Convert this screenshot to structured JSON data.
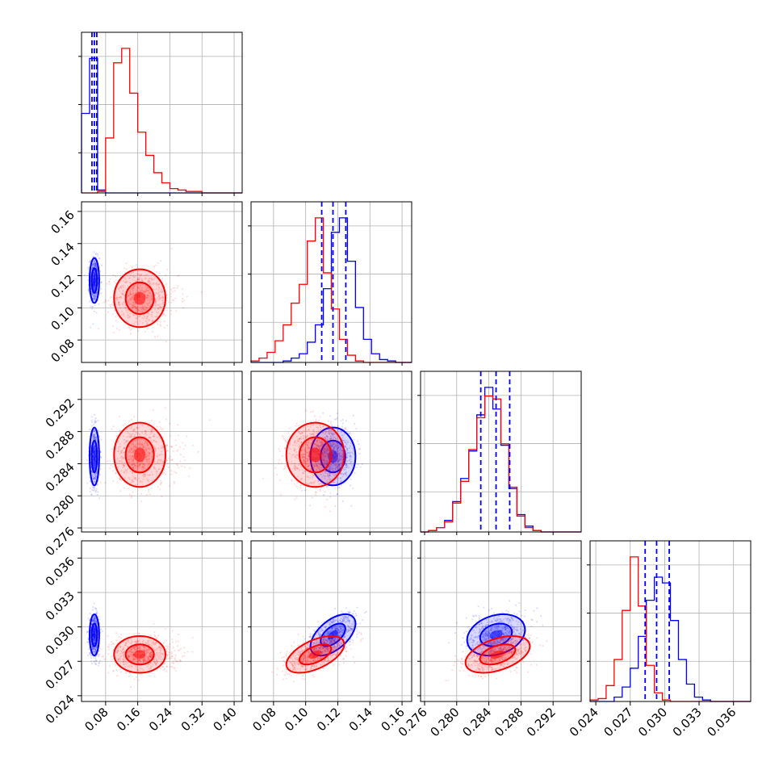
{
  "chart_data": {
    "type": "corner",
    "parameters": [
      {
        "key": "p1",
        "range": [
          0.02,
          0.42
        ],
        "ticks": [
          0.08,
          0.16,
          0.24,
          0.32,
          0.4
        ],
        "tick_labels": [
          "0.08",
          "0.16",
          "0.24",
          "0.32",
          "0.40"
        ]
      },
      {
        "key": "p2",
        "range": [
          0.066,
          0.166
        ],
        "ticks": [
          0.08,
          0.1,
          0.12,
          0.14,
          0.16
        ],
        "tick_labels": [
          "0.08",
          "0.10",
          "0.12",
          "0.14",
          "0.16"
        ]
      },
      {
        "key": "p3",
        "range": [
          0.2755,
          0.2955
        ],
        "ticks": [
          0.276,
          0.28,
          0.284,
          0.288,
          0.292
        ],
        "tick_labels": [
          "0.276",
          "0.280",
          "0.284",
          "0.288",
          "0.292"
        ]
      },
      {
        "key": "p4",
        "range": [
          0.0235,
          0.0375
        ],
        "ticks": [
          0.024,
          0.027,
          0.03,
          0.033,
          0.036
        ],
        "tick_labels": [
          "0.024",
          "0.027",
          "0.030",
          "0.033",
          "0.036"
        ]
      }
    ],
    "series": [
      {
        "color": "#0000ff",
        "mean": [
          0.052,
          0.117,
          0.2849,
          0.0293
        ],
        "sd": [
          0.006,
          0.007,
          0.0018,
          0.0009
        ],
        "corr": [
          [
            1,
            0,
            0,
            0
          ],
          [
            0,
            1,
            0,
            0.55
          ],
          [
            0,
            0,
            1,
            0.25
          ],
          [
            0,
            0.55,
            0.25,
            1
          ]
        ],
        "quantile_lines": [
          [
            0.046,
            0.052,
            0.058
          ],
          [
            0.11,
            0.117,
            0.125
          ],
          [
            0.283,
            0.2849,
            0.2866
          ],
          [
            0.0283,
            0.0293,
            0.0304
          ]
        ],
        "histograms": [
          {
            "range": [
              0.02,
              0.42
            ],
            "bins": 20,
            "heights": [
              0.55,
              0.93,
              0.02,
              0,
              0,
              0,
              0,
              0,
              0,
              0,
              0,
              0,
              0,
              0,
              0,
              0,
              0,
              0,
              0,
              0
            ]
          },
          {
            "range": [
              0.066,
              0.166
            ],
            "bins": 20,
            "heights": [
              0,
              0,
              0,
              0,
              0.01,
              0.03,
              0.06,
              0.14,
              0.26,
              0.51,
              0.9,
              1.0,
              0.7,
              0.38,
              0.16,
              0.06,
              0.02,
              0.01,
              0,
              0
            ]
          },
          {
            "range": [
              0.2755,
              0.2955
            ],
            "bins": 20,
            "heights": [
              0,
              0.01,
              0.03,
              0.08,
              0.21,
              0.37,
              0.56,
              0.81,
              1.0,
              0.85,
              0.6,
              0.3,
              0.12,
              0.04,
              0.01,
              0,
              0,
              0,
              0,
              0
            ]
          },
          {
            "range": [
              0.0235,
              0.0375
            ],
            "bins": 20,
            "heights": [
              0,
              0,
              0,
              0.03,
              0.1,
              0.23,
              0.45,
              0.7,
              0.86,
              0.82,
              0.56,
              0.29,
              0.12,
              0.03,
              0.01,
              0,
              0,
              0,
              0,
              0
            ]
          }
        ]
      },
      {
        "color": "#ff0000",
        "mean": [
          0.165,
          0.106,
          0.2851,
          0.0276
        ],
        "sd": [
          0.032,
          0.009,
          0.002,
          0.0008
        ],
        "corr": [
          [
            1,
            0,
            0,
            0
          ],
          [
            0,
            1,
            0,
            0.55
          ],
          [
            0,
            0,
            1,
            0.45
          ],
          [
            0,
            0.55,
            0.45,
            1
          ]
        ],
        "histograms": [
          {
            "range": [
              0.02,
              0.42
            ],
            "bins": 20,
            "heights": [
              0,
              0,
              0.01,
              0.38,
              0.9,
              1.0,
              0.69,
              0.42,
              0.26,
              0.14,
              0.07,
              0.03,
              0.02,
              0.01,
              0.01,
              0,
              0,
              0,
              0,
              0
            ]
          },
          {
            "range": [
              0.066,
              0.166
            ],
            "bins": 20,
            "heights": [
              0.01,
              0.03,
              0.07,
              0.15,
              0.26,
              0.41,
              0.54,
              0.84,
              1.0,
              0.62,
              0.37,
              0.16,
              0.05,
              0.01,
              0,
              0,
              0,
              0,
              0,
              0
            ]
          },
          {
            "range": [
              0.2755,
              0.2955
            ],
            "bins": 20,
            "heights": [
              0,
              0.01,
              0.03,
              0.07,
              0.2,
              0.35,
              0.57,
              0.79,
              0.94,
              0.92,
              0.61,
              0.31,
              0.11,
              0.03,
              0.01,
              0,
              0,
              0,
              0,
              0
            ]
          },
          {
            "range": [
              0.0235,
              0.0375
            ],
            "bins": 20,
            "heights": [
              0.01,
              0.02,
              0.11,
              0.29,
              0.63,
              1.0,
              0.66,
              0.25,
              0.06,
              0.01,
              0,
              0,
              0,
              0,
              0,
              0,
              0,
              0,
              0,
              0
            ]
          }
        ]
      }
    ],
    "grid": true,
    "contour_levels_sigma": [
      1,
      2
    ]
  }
}
